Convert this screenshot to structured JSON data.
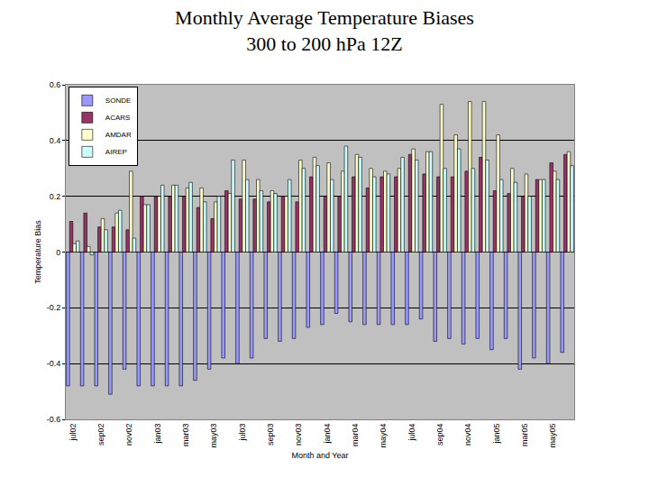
{
  "chart_data": {
    "type": "bar",
    "title": "Monthly Average Temperature Biases",
    "subtitle": "300 to 200 hPa 12Z",
    "x_label": "Month and Year",
    "y_label": "Temperature Bias",
    "categories": [
      "jul02",
      null,
      "sep02",
      null,
      "nov02",
      null,
      "jan03",
      null,
      "mar03",
      null,
      "may03",
      null,
      "jul03",
      null,
      "sep03",
      null,
      "nov03",
      null,
      "jan04",
      null,
      "mar04",
      null,
      "may04",
      null,
      "jul04",
      null,
      "sep04",
      null,
      "nov04",
      null,
      "jan05",
      null,
      "mar05",
      null,
      "may05",
      null
    ],
    "series": [
      {
        "name": "SONDE",
        "color": "#9999ff",
        "values": [
          -0.48,
          -0.48,
          -0.48,
          -0.51,
          -0.42,
          -0.48,
          -0.48,
          -0.48,
          -0.48,
          -0.46,
          -0.42,
          -0.38,
          -0.4,
          -0.38,
          -0.31,
          -0.32,
          -0.31,
          -0.27,
          -0.26,
          -0.22,
          -0.25,
          -0.26,
          -0.26,
          -0.26,
          -0.26,
          -0.24,
          -0.32,
          -0.31,
          -0.33,
          -0.31,
          -0.35,
          -0.31,
          -0.42,
          -0.38,
          -0.4,
          -0.36
        ]
      },
      {
        "name": "ACARS",
        "color": "#993366",
        "values": [
          0.11,
          0.14,
          0.09,
          0.09,
          0.08,
          0.2,
          0.2,
          0.2,
          0.2,
          0.16,
          0.12,
          0.22,
          0.19,
          0.19,
          0.18,
          0.2,
          0.18,
          0.27,
          0.2,
          0.2,
          0.27,
          0.23,
          0.27,
          0.27,
          0.35,
          0.28,
          0.27,
          0.27,
          0.29,
          0.34,
          0.22,
          0.21,
          0.2,
          0.26,
          0.32,
          0.35
        ]
      },
      {
        "name": "AMDAR",
        "color": "#ffffcc",
        "values": [
          0.03,
          0.02,
          0.12,
          0.14,
          0.29,
          0.17,
          0.2,
          0.24,
          0.23,
          0.23,
          0.18,
          0.21,
          0.33,
          0.26,
          0.22,
          0.2,
          0.33,
          0.34,
          0.32,
          0.29,
          0.35,
          0.3,
          0.29,
          0.3,
          0.37,
          0.36,
          0.53,
          0.42,
          0.54,
          0.54,
          0.42,
          0.3,
          0.28,
          0.26,
          0.29,
          0.36
        ]
      },
      {
        "name": "AIREP",
        "color": "#ccffff",
        "values": [
          0.04,
          -0.01,
          0.08,
          0.15,
          0.05,
          0.17,
          0.24,
          0.24,
          0.25,
          0.18,
          0.2,
          0.33,
          0.26,
          0.22,
          0.21,
          0.26,
          0.3,
          0.31,
          0.26,
          0.38,
          0.34,
          0.27,
          0.28,
          0.34,
          0.33,
          0.36,
          0.3,
          0.37,
          0.3,
          0.33,
          0.26,
          0.25,
          0.2,
          0.26,
          0.26,
          0.31
        ]
      }
    ],
    "ylim": [
      -0.6,
      0.6
    ],
    "yticks": [
      -0.6,
      -0.4,
      -0.2,
      0,
      0.2,
      0.4,
      0.6
    ],
    "grid": true,
    "legend": "upper left"
  }
}
